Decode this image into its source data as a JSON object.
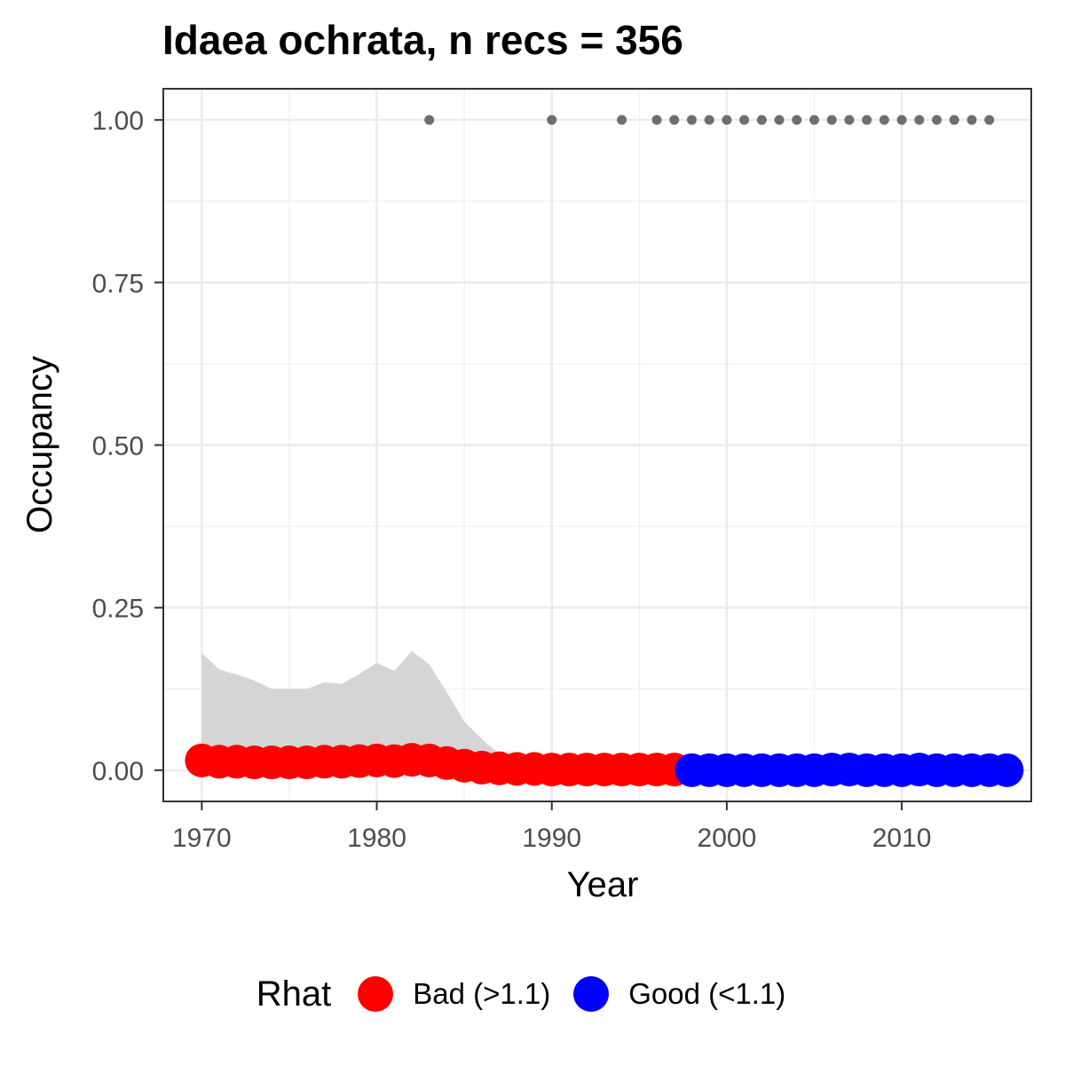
{
  "chart_data": {
    "type": "scatter",
    "title": "Idaea ochrata, n recs = 356",
    "xlabel": "Year",
    "ylabel": "Occupancy",
    "xlim": [
      1967.8,
      2017.4
    ],
    "ylim": [
      -0.048,
      1.048
    ],
    "x_ticks": [
      1970,
      1980,
      1990,
      2000,
      2010
    ],
    "y_ticks": [
      0.0,
      0.25,
      0.5,
      0.75,
      1.0
    ],
    "y_tick_labels": [
      "0.00",
      "0.25",
      "0.50",
      "0.75",
      "1.00"
    ],
    "grid": true,
    "legend": {
      "title": "Rhat",
      "placement": "bottom",
      "entries": [
        {
          "label": "Bad (>1.1)",
          "color": "#FF0000"
        },
        {
          "label": "Good (<1.1)",
          "color": "#0000FF"
        }
      ]
    },
    "credible_interval": {
      "color": "#D3D3D3",
      "x": [
        1970,
        1971,
        1972,
        1973,
        1974,
        1975,
        1976,
        1977,
        1978,
        1979,
        1980,
        1981,
        1982,
        1983,
        1984,
        1985,
        1986,
        1987,
        1988,
        1989,
        1990,
        1991,
        1992,
        1993,
        1994,
        1995,
        1996,
        1997
      ],
      "lower": [
        0,
        0,
        0,
        0,
        0,
        0,
        0,
        0,
        0,
        0,
        0,
        0,
        0,
        0,
        0,
        0,
        0,
        0,
        0,
        0,
        0,
        0,
        0,
        0,
        0,
        0,
        0,
        0
      ],
      "upper": [
        0.18,
        0.155,
        0.147,
        0.138,
        0.125,
        0.125,
        0.125,
        0.135,
        0.133,
        0.148,
        0.165,
        0.153,
        0.183,
        0.163,
        0.12,
        0.075,
        0.048,
        0.025,
        0.012,
        0.008,
        0.006,
        0.005,
        0.004,
        0.004,
        0.003,
        0.003,
        0.002,
        0.002
      ]
    },
    "series": [
      {
        "name": "Bad (>1.1)",
        "color": "#FF0000",
        "x": [
          1970,
          1971,
          1972,
          1973,
          1974,
          1975,
          1976,
          1977,
          1978,
          1979,
          1980,
          1981,
          1982,
          1983,
          1984,
          1985,
          1986,
          1987,
          1988,
          1989,
          1990,
          1991,
          1992,
          1993,
          1994,
          1995,
          1996,
          1997
        ],
        "y": [
          0.015,
          0.013,
          0.013,
          0.012,
          0.012,
          0.012,
          0.012,
          0.013,
          0.013,
          0.014,
          0.015,
          0.014,
          0.016,
          0.015,
          0.011,
          0.007,
          0.004,
          0.003,
          0.002,
          0.002,
          0.001,
          0.001,
          0.001,
          0.001,
          0.001,
          0.001,
          0.001,
          0.001
        ]
      },
      {
        "name": "Good (<1.1)",
        "color": "#0000FF",
        "x": [
          1998,
          1999,
          2000,
          2001,
          2002,
          2003,
          2004,
          2005,
          2006,
          2007,
          2008,
          2009,
          2010,
          2011,
          2012,
          2013,
          2014,
          2015,
          2016
        ],
        "y": [
          0.0,
          0.0,
          0.0,
          0.0,
          0.0,
          0.0,
          0.0,
          0.0,
          0.001,
          0.001,
          0.0,
          0.0,
          0.0,
          0.001,
          0.0,
          0.0,
          0.0,
          0.0,
          0.0
        ]
      }
    ],
    "observations": {
      "color": "#6E6E6E",
      "x": [
        1983,
        1990,
        1994,
        1996,
        1997,
        1998,
        1999,
        2000,
        2001,
        2002,
        2003,
        2004,
        2005,
        2006,
        2007,
        2008,
        2009,
        2010,
        2011,
        2012,
        2013,
        2014,
        2015
      ],
      "y": [
        1,
        1,
        1,
        1,
        1,
        1,
        1,
        1,
        1,
        1,
        1,
        1,
        1,
        1,
        1,
        1,
        1,
        1,
        1,
        1,
        1,
        1,
        1
      ]
    }
  }
}
